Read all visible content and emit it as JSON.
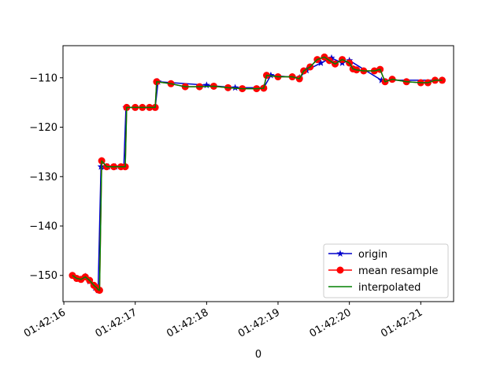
{
  "chart_data": {
    "type": "line",
    "title": "",
    "xlabel": "0",
    "ylabel": "",
    "grid": false,
    "legend_position": "lower-right",
    "x_tick_labels": [
      "01:42:16",
      "01:42:17",
      "01:42:18",
      "01:42:19",
      "01:42:20",
      "01:42:21"
    ],
    "y_ticks": [
      -150,
      -140,
      -130,
      -120,
      -110
    ],
    "xlim": [
      -0.012,
      5.46
    ],
    "ylim": [
      -155.3,
      -103.5
    ],
    "colors": {
      "origin": "#0000cc",
      "mean_resample": "#ff0000",
      "interpolated": "#008000"
    },
    "series": [
      {
        "name": "origin",
        "marker": "star",
        "x": [
          0.12,
          0.2,
          0.3,
          0.36,
          0.44,
          0.48,
          0.52,
          0.57,
          0.62,
          0.72,
          0.84,
          0.87,
          1.28,
          1.32,
          2.0,
          2.4,
          2.8,
          2.9,
          3.3,
          3.4,
          3.6,
          3.75,
          3.9,
          4.0,
          4.45,
          5.3
        ],
        "y": [
          -150.0,
          -150.7,
          -150.2,
          -151.2,
          -152.5,
          -153.0,
          -128.0,
          -128.0,
          -128.0,
          -128.0,
          -128.0,
          -116.0,
          -116.0,
          -110.8,
          -111.5,
          -112.0,
          -112.0,
          -109.5,
          -110.0,
          -108.5,
          -107.0,
          -106.0,
          -107.0,
          -106.5,
          -110.5,
          -110.5
        ]
      },
      {
        "name": "mean resample",
        "marker": "circle",
        "x": [
          0.12,
          0.18,
          0.24,
          0.3,
          0.36,
          0.42,
          0.46,
          0.48,
          0.5,
          0.53,
          0.6,
          0.7,
          0.8,
          0.86,
          0.88,
          1.0,
          1.1,
          1.2,
          1.28,
          1.3,
          1.5,
          1.7,
          1.9,
          2.1,
          2.3,
          2.5,
          2.7,
          2.8,
          2.84,
          3.0,
          3.2,
          3.3,
          3.36,
          3.45,
          3.55,
          3.65,
          3.72,
          3.8,
          3.9,
          4.0,
          4.05,
          4.1,
          4.2,
          4.35,
          4.43,
          4.5,
          4.6,
          4.8,
          5.0,
          5.1,
          5.2,
          5.3
        ],
        "y": [
          -150.0,
          -150.6,
          -150.8,
          -150.3,
          -151.0,
          -152.0,
          -152.5,
          -152.9,
          -153.0,
          -126.8,
          -128.0,
          -128.0,
          -128.0,
          -128.0,
          -116.0,
          -116.0,
          -116.0,
          -116.0,
          -116.0,
          -110.8,
          -111.2,
          -111.8,
          -111.8,
          -111.7,
          -112.0,
          -112.2,
          -112.2,
          -112.1,
          -109.5,
          -109.8,
          -109.8,
          -110.2,
          -108.6,
          -107.8,
          -106.3,
          -105.8,
          -106.5,
          -107.2,
          -106.3,
          -107.0,
          -108.2,
          -108.4,
          -108.6,
          -108.6,
          -108.3,
          -110.8,
          -110.3,
          -110.8,
          -111.0,
          -111.0,
          -110.5,
          -110.5
        ]
      },
      {
        "name": "interpolated",
        "marker": "none",
        "x": [
          0.12,
          0.18,
          0.24,
          0.3,
          0.36,
          0.42,
          0.46,
          0.48,
          0.5,
          0.53,
          0.6,
          0.7,
          0.8,
          0.86,
          0.88,
          1.0,
          1.1,
          1.2,
          1.28,
          1.3,
          1.5,
          1.7,
          1.9,
          2.1,
          2.3,
          2.5,
          2.7,
          2.8,
          2.84,
          3.0,
          3.2,
          3.3,
          3.36,
          3.45,
          3.55,
          3.65,
          3.72,
          3.8,
          3.9,
          4.0,
          4.05,
          4.1,
          4.2,
          4.35,
          4.43,
          4.5,
          4.6,
          4.8,
          5.0,
          5.1,
          5.2,
          5.3
        ],
        "y": [
          -150.0,
          -150.6,
          -150.8,
          -150.3,
          -151.0,
          -152.0,
          -152.5,
          -152.9,
          -153.0,
          -126.8,
          -128.0,
          -128.0,
          -128.0,
          -128.0,
          -116.0,
          -116.0,
          -116.0,
          -116.0,
          -116.0,
          -110.8,
          -111.2,
          -111.8,
          -111.8,
          -111.7,
          -112.0,
          -112.2,
          -112.2,
          -112.1,
          -109.5,
          -109.8,
          -109.8,
          -110.2,
          -108.6,
          -107.8,
          -106.3,
          -105.8,
          -106.5,
          -107.2,
          -106.3,
          -107.0,
          -108.2,
          -108.4,
          -108.6,
          -108.6,
          -108.3,
          -110.8,
          -110.3,
          -110.8,
          -111.0,
          -111.0,
          -110.5,
          -110.5
        ]
      }
    ]
  }
}
